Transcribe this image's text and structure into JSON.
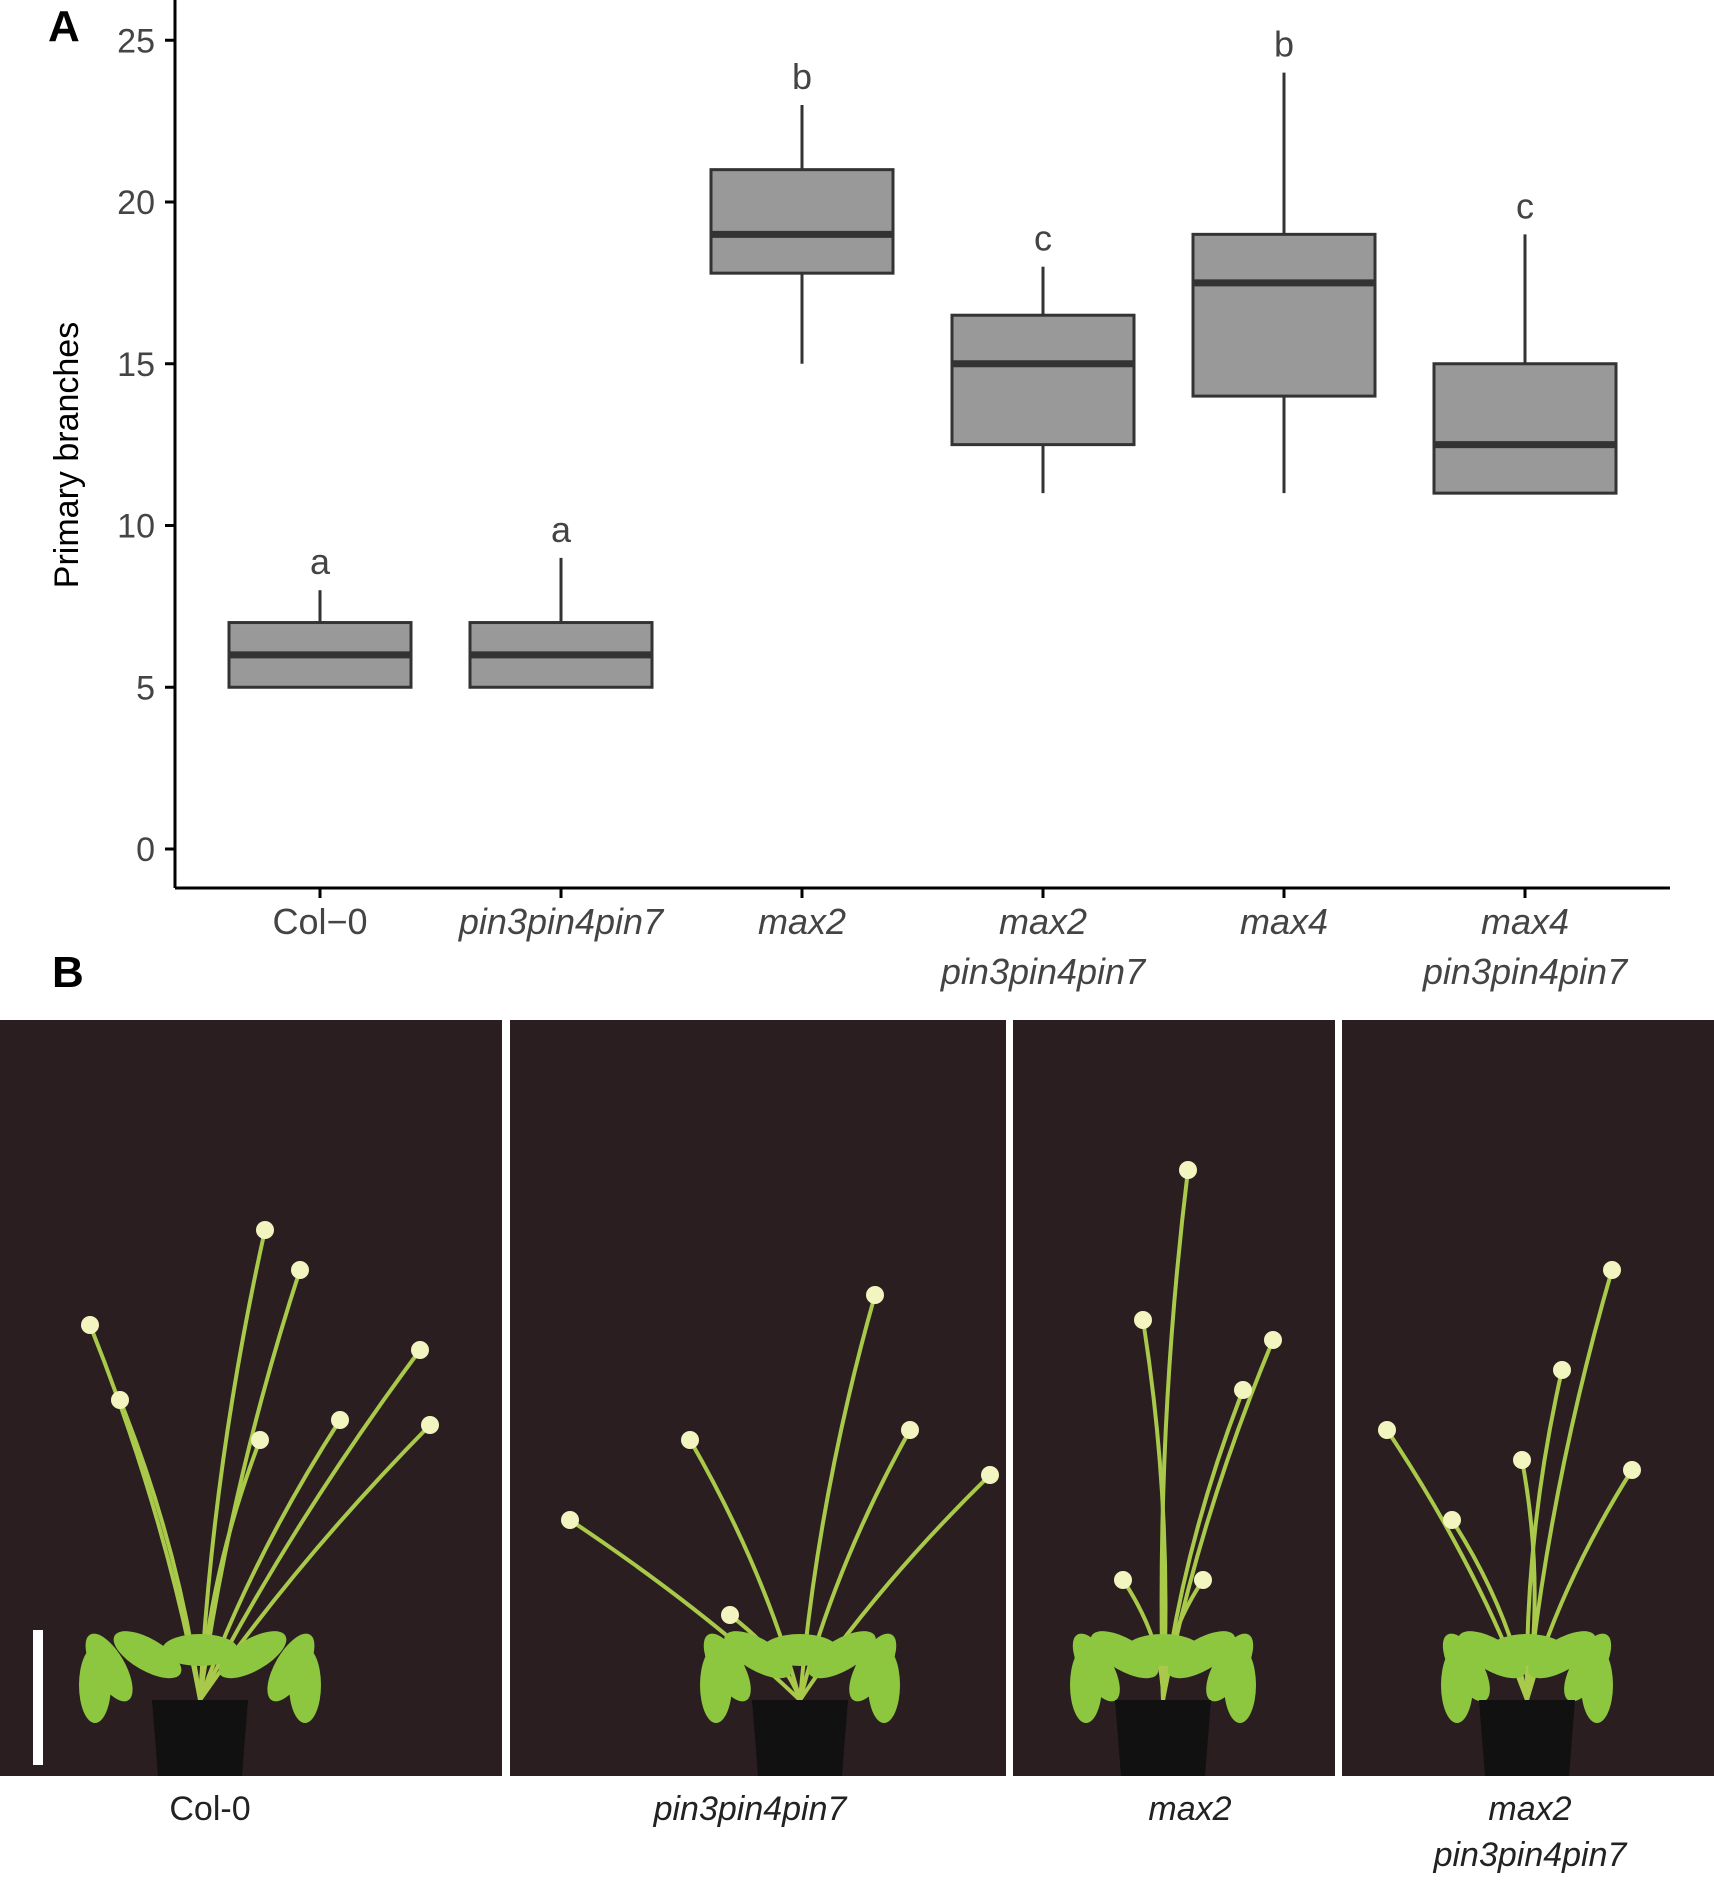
{
  "panels": {
    "a_label": "A",
    "b_label": "B"
  },
  "chart_data": {
    "type": "box",
    "ylabel": "Primary branches",
    "xlabel": "",
    "ylim": [
      0,
      26
    ],
    "yticks": [
      0,
      5,
      10,
      15,
      20,
      25
    ],
    "grid": false,
    "categories": [
      {
        "line1": "Col−0",
        "line2": "",
        "italic": false
      },
      {
        "line1": "pin3pin4pin7",
        "line2": "",
        "italic": true
      },
      {
        "line1": "max2",
        "line2": "",
        "italic": true
      },
      {
        "line1": "max2",
        "line2": "pin3pin4pin7",
        "italic": true
      },
      {
        "line1": "max4",
        "line2": "",
        "italic": true
      },
      {
        "line1": "max4",
        "line2": "pin3pin4pin7",
        "italic": true
      }
    ],
    "boxes": [
      {
        "min": 5,
        "q1": 5,
        "median": 6,
        "q3": 7,
        "max": 8,
        "letter": "a"
      },
      {
        "min": 5,
        "q1": 5,
        "median": 6,
        "q3": 7,
        "max": 9,
        "letter": "a"
      },
      {
        "min": 15,
        "q1": 17.8,
        "median": 19,
        "q3": 21,
        "max": 23,
        "letter": "b"
      },
      {
        "min": 11,
        "q1": 12.5,
        "median": 15,
        "q3": 16.5,
        "max": 18,
        "letter": "c"
      },
      {
        "min": 11,
        "q1": 14,
        "median": 17.5,
        "q3": 19,
        "max": 24,
        "letter": "b"
      },
      {
        "min": 11,
        "q1": 11,
        "median": 12.5,
        "q3": 15,
        "max": 19,
        "letter": "c"
      }
    ],
    "colors": {
      "box_fill": "#999999",
      "box_stroke": "#333333",
      "axis": "#000000",
      "text": "#444444"
    }
  },
  "photos": [
    {
      "label_line1": "Col-0",
      "label_line2": "",
      "italic": false,
      "scale_bar": true
    },
    {
      "label_line1": "pin3pin4pin7",
      "label_line2": "",
      "italic": true,
      "scale_bar": false
    },
    {
      "label_line1": "max2",
      "label_line2": "",
      "italic": true,
      "scale_bar": false
    },
    {
      "label_line1": "max2",
      "label_line2": "pin3pin4pin7",
      "italic": true,
      "scale_bar": false
    }
  ],
  "photo_colors": {
    "background": "#2a1e21",
    "stem": "#a9c94a",
    "leaf": "#8dc63f",
    "pot": "#111111",
    "flower": "#f3f5c0"
  }
}
